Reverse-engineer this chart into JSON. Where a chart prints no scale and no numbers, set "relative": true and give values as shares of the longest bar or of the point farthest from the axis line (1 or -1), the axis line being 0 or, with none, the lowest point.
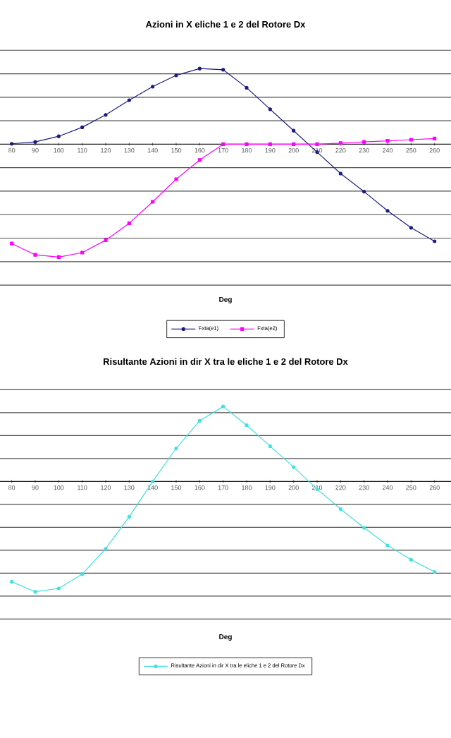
{
  "chart_data": [
    {
      "type": "line",
      "title": "Azioni in X eliche 1 e 2 del Rotore Dx",
      "xlabel": "Deg",
      "relative": true,
      "grid": "y",
      "legend": "bottom",
      "categories": [
        "80",
        "90",
        "100",
        "110",
        "120",
        "130",
        "140",
        "150",
        "160",
        "170",
        "180",
        "190",
        "200",
        "210",
        "220",
        "230",
        "240",
        "250",
        "260"
      ],
      "series": [
        {
          "name": "Fxta(e1)",
          "color": "#1a1a80",
          "marker": "circle",
          "values": [
            0.004,
            0.02,
            0.07,
            0.15,
            0.26,
            0.39,
            0.51,
            0.61,
            0.67,
            0.66,
            0.5,
            0.31,
            0.12,
            -0.07,
            -0.26,
            -0.42,
            -0.59,
            -0.74,
            -0.86
          ]
        },
        {
          "name": "Fxta(e2)",
          "color": "#ff00ff",
          "marker": "square",
          "values": [
            -0.88,
            -0.98,
            -1,
            -0.96,
            -0.85,
            -0.7,
            -0.51,
            -0.31,
            -0.14,
            0,
            0,
            0,
            0,
            0,
            0.01,
            0.02,
            0.03,
            0.04,
            0.05
          ]
        }
      ]
    },
    {
      "type": "line",
      "title": "Risultante Azioni in dir X tra le eliche 1 e 2 del Rotore Dx",
      "xlabel": "Deg",
      "relative": true,
      "grid": "y",
      "legend": "bottom",
      "categories": [
        "80",
        "90",
        "100",
        "110",
        "120",
        "130",
        "140",
        "150",
        "160",
        "170",
        "180",
        "190",
        "200",
        "210",
        "220",
        "230",
        "240",
        "250",
        "260"
      ],
      "series": [
        {
          "name": "Risultante Azioni in dir X tra le eliche 1 e 2 del Rotore Dx",
          "color": "#40e0e0",
          "marker": "circle",
          "values": [
            -0.91,
            -1,
            -0.97,
            -0.84,
            -0.61,
            -0.32,
            0,
            0.3,
            0.55,
            0.68,
            0.51,
            0.32,
            0.13,
            -0.07,
            -0.25,
            -0.42,
            -0.58,
            -0.71,
            -0.82
          ]
        }
      ]
    }
  ]
}
